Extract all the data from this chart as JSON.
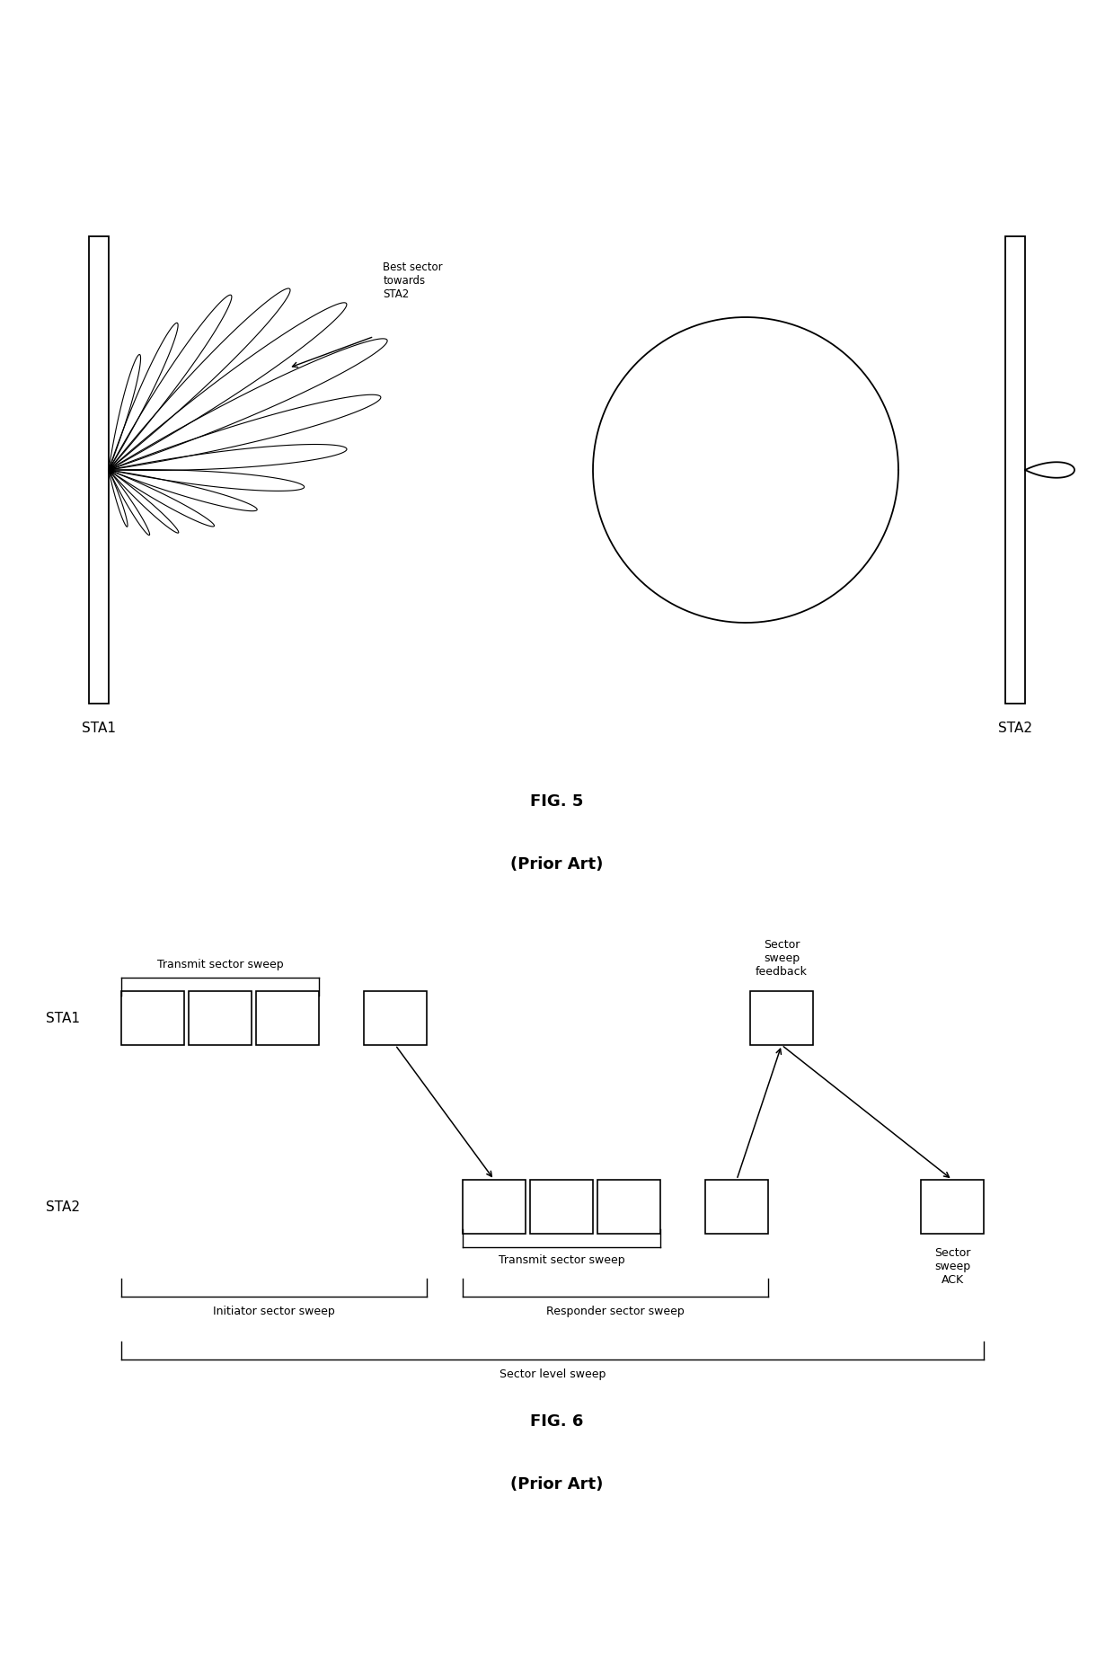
{
  "fig5_title": "FIG. 5",
  "fig5_subtitle": "(Prior Art)",
  "fig6_title": "FIG. 6",
  "fig6_subtitle": "(Prior Art)",
  "sta1_label": "STA1",
  "sta2_label": "STA2",
  "best_sector_label": "Best sector\ntowards\nSTA2",
  "transmit_sector_sweep_label": "Transmit sector sweep",
  "sector_sweep_feedback_label": "Sector\nsweep\nfeedback",
  "sector_sweep_ack_label": "Sector\nsweep\nACK",
  "transmit_sector_sweep_label2": "Transmit sector sweep",
  "initiator_sector_sweep_label": "Initiator sector sweep",
  "responder_sector_sweep_label": "Responder sector sweep",
  "sector_level_sweep_label": "Sector level sweep",
  "background_color": "#ffffff",
  "line_color": "#000000",
  "num_beams": 14,
  "lobe_lengths": [
    1.4,
    1.9,
    2.5,
    3.0,
    3.4,
    3.6,
    3.3,
    2.8,
    2.3,
    1.8,
    1.4,
    1.1,
    0.9,
    0.7
  ],
  "lobe_angles_deg": [
    75,
    65,
    55,
    45,
    35,
    25,
    15,
    5,
    -5,
    -15,
    -28,
    -42,
    -58,
    -72
  ]
}
